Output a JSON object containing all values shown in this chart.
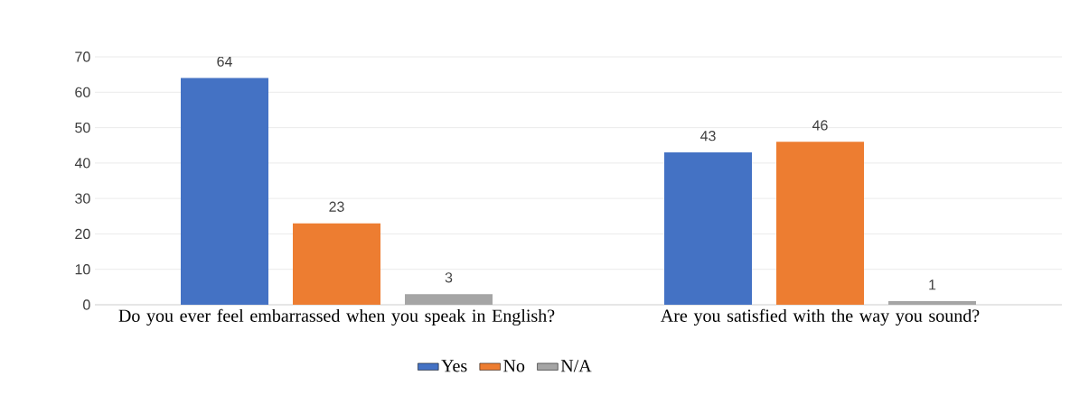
{
  "chart_data": {
    "type": "bar",
    "categories": [
      "Do you ever feel embarrassed when you speak in English?",
      "Are you satisfied with the way you sound?"
    ],
    "series": [
      {
        "name": "Yes",
        "color": "#4472c4",
        "values": [
          64,
          43
        ]
      },
      {
        "name": "No",
        "color": "#ed7d31",
        "values": [
          23,
          46
        ]
      },
      {
        "name": "N/A",
        "color": "#a5a5a5",
        "values": [
          3,
          1
        ]
      }
    ],
    "ylim": [
      0,
      70
    ],
    "yticks": [
      0,
      10,
      20,
      30,
      40,
      50,
      60,
      70
    ],
    "grid": "y",
    "data_labels": true,
    "legend": "bottom"
  }
}
